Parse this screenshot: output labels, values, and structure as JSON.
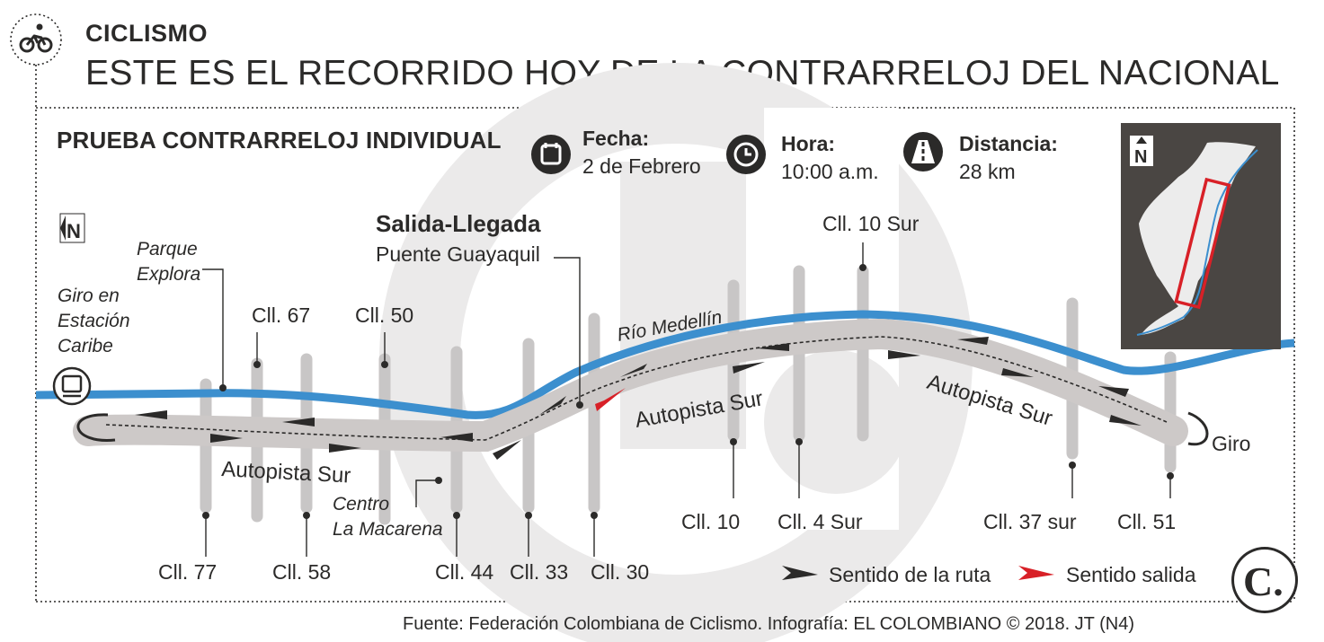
{
  "header": {
    "section": "CICLISMO",
    "title": "ESTE ES EL RECORRIDO HOY DE LA CONTRARRELOJ DEL NACIONAL"
  },
  "event": {
    "title": "PRUEBA CONTRARRELOJ INDIVIDUAL",
    "date_label": "Fecha:",
    "date_value": "2 de Febrero",
    "time_label": "Hora:",
    "time_value": "10:00 a.m.",
    "distance_label": "Distancia:",
    "distance_value": "28 km"
  },
  "map": {
    "north_label": "N",
    "start_finish_label": "Salida-Llegada",
    "start_finish_place": "Puente Guayaquil",
    "river_label": "Río Medellín",
    "road_labels": [
      "Autopista Sur",
      "Autopista Sur",
      "Autopista Sur"
    ],
    "turn_north": "Giro en Estación Caribe",
    "turn_north_lines": [
      "Giro en",
      "Estación",
      "Caribe"
    ],
    "turn_south": "Giro",
    "places": {
      "parque_explora": [
        "Parque",
        "Explora"
      ],
      "centro_macarena": [
        "Centro",
        "La Macarena"
      ]
    },
    "streets_top": [
      "Cll. 67",
      "Cll. 50",
      "Cll. 10 Sur"
    ],
    "streets_bottom": [
      "Cll. 77",
      "Cll. 58",
      "Cll. 44",
      "Cll. 33",
      "Cll. 30",
      "Cll. 10",
      "Cll. 4 Sur",
      "Cll. 37 sur",
      "Cll. 51"
    ]
  },
  "legend": {
    "route_direction": "Sentido de la ruta",
    "start_direction": "Sentido salida"
  },
  "inset": {
    "north_label": "N"
  },
  "logo": {
    "letter": "C."
  },
  "source": "Fuente: Federación Colombiana de Ciclismo. Infografía: EL COLOMBIANO © 2018. JT (N4)",
  "colors": {
    "river": "#3c8fce",
    "road": "#cdc9c8",
    "street": "#c8c6c6",
    "text": "#2b2a29",
    "start_arrow": "#d82027",
    "inset_bg": "#4a4643",
    "inset_box": "#d82027",
    "watermark": "#ebeaea"
  }
}
